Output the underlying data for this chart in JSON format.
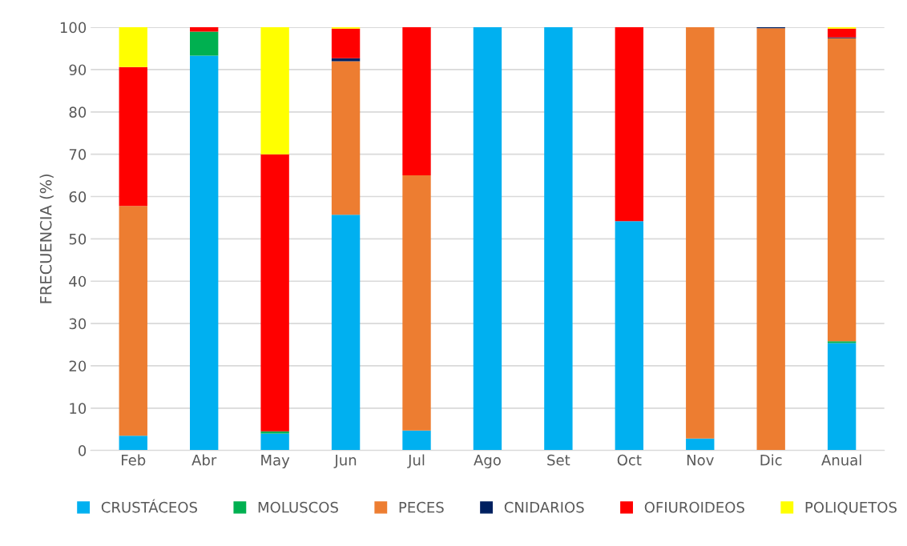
{
  "chart_data": {
    "type": "bar",
    "stacked": true,
    "ylabel": "FRECUENCIA (%)",
    "categories": [
      "Feb",
      "Abr",
      "May",
      "Jun",
      "Jul",
      "Ago",
      "Set",
      "Oct",
      "Nov",
      "Dic",
      "Anual"
    ],
    "series": [
      {
        "name": "CRUSTÁCEOS",
        "color": "#00b0f0",
        "values": [
          3.5,
          93.3,
          4.0,
          55.7,
          4.7,
          100,
          100,
          54.2,
          2.8,
          0,
          25.4
        ]
      },
      {
        "name": "MOLUSCOS",
        "color": "#00b050",
        "values": [
          0,
          5.7,
          0.5,
          0,
          0,
          0,
          0,
          0,
          0,
          0,
          0.4
        ]
      },
      {
        "name": "PECES",
        "color": "#ed7d31",
        "values": [
          54.3,
          0,
          0,
          36.3,
          60.3,
          0,
          0,
          0,
          97.2,
          99.8,
          71.6
        ]
      },
      {
        "name": "CNIDARIOS",
        "color": "#002060",
        "values": [
          0,
          0,
          0,
          0.7,
          0,
          0,
          0,
          0,
          0,
          0.2,
          0.2
        ]
      },
      {
        "name": "OFIUROIDEOS",
        "color": "#ff0000",
        "values": [
          32.8,
          1.0,
          65.5,
          7.0,
          35.0,
          0,
          0,
          45.8,
          0,
          0,
          2.1
        ]
      },
      {
        "name": "POLIQUETOS",
        "color": "#ffff00",
        "values": [
          9.4,
          0,
          30.0,
          0.3,
          0,
          0,
          0,
          0,
          0,
          0,
          0.3
        ]
      }
    ],
    "ylim": [
      0,
      100
    ],
    "yticks": [
      0,
      10,
      20,
      30,
      40,
      50,
      60,
      70,
      80,
      90,
      100
    ],
    "grid": "y",
    "legend": "bottom"
  }
}
